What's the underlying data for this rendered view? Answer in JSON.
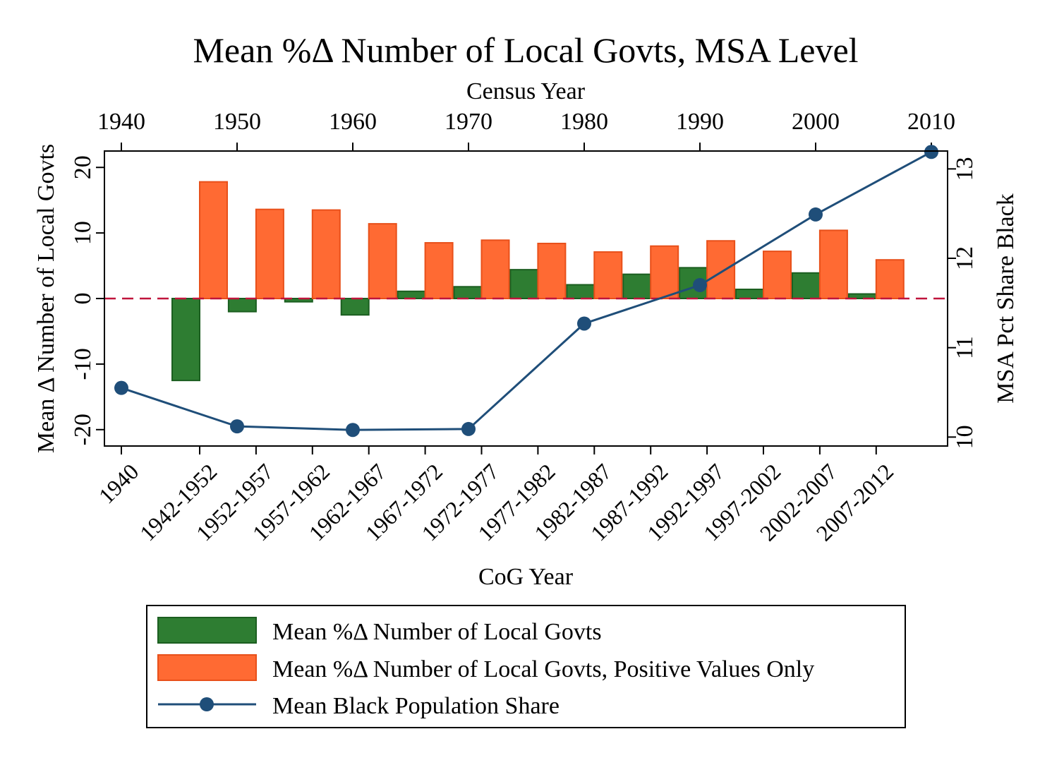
{
  "chart_data": {
    "type": "bar",
    "title": "Mean %Δ Number of Local Govts, MSA Level",
    "top_axis": {
      "label": "Census Year",
      "ticks": [
        "1940",
        "1950",
        "1960",
        "1970",
        "1980",
        "1990",
        "2000",
        "2010"
      ],
      "range": [
        1940,
        2010
      ]
    },
    "xlabel": "CoG Year",
    "categories": [
      "1940",
      "1942-1952",
      "1952-1957",
      "1957-1962",
      "1962-1967",
      "1967-1972",
      "1972-1977",
      "1977-1982",
      "1982-1987",
      "1987-1992",
      "1992-1997",
      "1997-2002",
      "2002-2007",
      "2007-2012"
    ],
    "ylabel_left": "Mean Δ Number of Local Govts",
    "ylim_left": [
      -22.5,
      22.5
    ],
    "yticks_left": [
      "20",
      "10",
      "0",
      "-10",
      "-20"
    ],
    "ylabel_right": "MSA Pct Share Black",
    "ylim_right": [
      9.9,
      13.2
    ],
    "yticks_right": [
      "13",
      "12",
      "11",
      "10"
    ],
    "reference_line": {
      "y": 0,
      "style": "dashed",
      "color": "#c0143c"
    },
    "series": [
      {
        "name": "Mean %Δ Number of Local Govts",
        "type": "bar",
        "axis": "left",
        "color": "#2e7d32",
        "points": [
          {
            "category": "1942-1952",
            "value": -12.5
          },
          {
            "category": "1952-1957",
            "value": -2.0
          },
          {
            "category": "1957-1962",
            "value": -0.5
          },
          {
            "category": "1962-1967",
            "value": -2.5
          },
          {
            "category": "1967-1972",
            "value": 1.1
          },
          {
            "category": "1972-1977",
            "value": 1.8
          },
          {
            "category": "1977-1982",
            "value": 4.4
          },
          {
            "category": "1982-1987",
            "value": 2.1
          },
          {
            "category": "1987-1992",
            "value": 3.7
          },
          {
            "category": "1992-1997",
            "value": 4.7
          },
          {
            "category": "1997-2002",
            "value": 1.4
          },
          {
            "category": "2002-2007",
            "value": 3.9
          },
          {
            "category": "2007-2012",
            "value": 0.7
          }
        ]
      },
      {
        "name": "Mean %Δ Number of Local Govts, Positive Values Only",
        "type": "bar",
        "axis": "left",
        "color": "#ff6a33",
        "points": [
          {
            "category": "1942-1952",
            "value": 17.8
          },
          {
            "category": "1952-1957",
            "value": 13.6
          },
          {
            "category": "1957-1962",
            "value": 13.5
          },
          {
            "category": "1962-1967",
            "value": 11.4
          },
          {
            "category": "1967-1972",
            "value": 8.5
          },
          {
            "category": "1972-1977",
            "value": 8.9
          },
          {
            "category": "1977-1982",
            "value": 8.4
          },
          {
            "category": "1982-1987",
            "value": 7.1
          },
          {
            "category": "1987-1992",
            "value": 8.0
          },
          {
            "category": "1992-1997",
            "value": 8.8
          },
          {
            "category": "1997-2002",
            "value": 7.2
          },
          {
            "category": "2002-2007",
            "value": 10.4
          },
          {
            "category": "2007-2012",
            "value": 5.9
          }
        ]
      },
      {
        "name": "Mean Black Population Share",
        "type": "line",
        "axis": "right",
        "color": "#1f4e79",
        "x": [
          1940,
          1950,
          1960,
          1970,
          1980,
          1990,
          2000,
          2010
        ],
        "values": [
          10.55,
          10.12,
          10.08,
          10.09,
          11.27,
          11.7,
          12.49,
          13.19
        ]
      }
    ],
    "legend": {
      "position": "bottom"
    },
    "grid": false
  }
}
